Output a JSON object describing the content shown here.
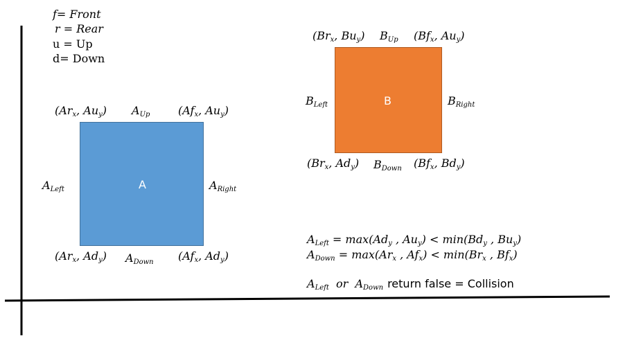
{
  "colors": {
    "box_a": "#5b9bd5",
    "box_a_border": "#41719c",
    "box_b": "#ed7d31",
    "box_b_border": "#ae5a21",
    "axis": "#000000"
  },
  "legend": {
    "front": "f= Front",
    "rear": "r = Rear",
    "up": "u = Up",
    "down": "d= Down"
  },
  "box_a": {
    "label": "A",
    "top_left": {
      "base": "(Ar",
      "sub1": "x",
      "mid": ",  Au",
      "sub2": "y",
      "end": ")"
    },
    "top_right": {
      "base": "(Af",
      "sub1": "x",
      "mid": ",  Au",
      "sub2": "y",
      "end": ")"
    },
    "bottom_left": {
      "base": "(Ar",
      "sub1": "x",
      "mid": ",  Ad",
      "sub2": "y",
      "end": ")"
    },
    "bottom_right": {
      "base": "(Af",
      "sub1": "x",
      "mid": ",  Ad",
      "sub2": "y",
      "end": ")"
    },
    "up": {
      "base": "A",
      "sub": "Up"
    },
    "down": {
      "base": "A",
      "sub": "Down"
    },
    "left": {
      "base": "A",
      "sub": "Left"
    },
    "right": {
      "base": "A",
      "sub": "Right"
    }
  },
  "box_b": {
    "label": "B",
    "top_left": {
      "base": "(Br",
      "sub1": "x",
      "mid": ",  Bu",
      "sub2": "y",
      "end": ")"
    },
    "top_right": {
      "base": "(Bf",
      "sub1": "x",
      "mid": ",  Au",
      "sub2": "y",
      "end": ")"
    },
    "bottom_left": {
      "base": "(Br",
      "sub1": "x",
      "mid": ",  Ad",
      "sub2": "y",
      "end": ")"
    },
    "bottom_right": {
      "base": "(Bf",
      "sub1": "x",
      "mid": ",  Bd",
      "sub2": "y",
      "end": ")"
    },
    "up": {
      "base": "B",
      "sub": "Up"
    },
    "down": {
      "base": "B",
      "sub": "Down"
    },
    "left": {
      "base": "B",
      "sub": "Left"
    },
    "right": {
      "base": "B",
      "sub": "Right"
    }
  },
  "formulas": {
    "line1": {
      "a": "A",
      "a_sub": "Left",
      "p1": " = max",
      "p2": "(Ad",
      "s1": "y",
      "p3": " , Au",
      "s2": "y",
      "p4": ") < min(Bd",
      "s3": "y",
      "p5": " , Bu",
      "s4": "y",
      "p6": ")"
    },
    "line2": {
      "a": "A",
      "a_sub": "Down",
      "p1": " = max(Ar",
      "s1": "x",
      "p2": " , Af",
      "s2": "x",
      "p3": ") < min(Br",
      "s3": "x",
      "p4": " ,  Bf",
      "s4": "x",
      "p5": ")"
    },
    "line3": {
      "a": "A",
      "a_sub": "Left",
      "or": "  or  ",
      "b": "A",
      "b_sub": "Down",
      "text": "return false = Collision"
    }
  }
}
